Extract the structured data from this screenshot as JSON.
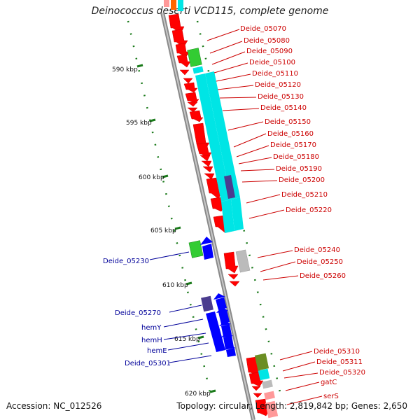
{
  "title": "Deinococcus deserti VCD115, complete genome",
  "footer": {
    "accession": "Accession: NC_012526",
    "summary": "Topology: circular; Length: 2,819,842 bp; Genes: 2,650"
  },
  "ticks": [
    "590 kbp",
    "595 kbp",
    "600 kbp",
    "605 kbp",
    "610 kbp",
    "615 kbp",
    "620 kbp"
  ],
  "labels_right": [
    "Deide_05070",
    "Deide_05080",
    "Deide_05090",
    "Deide_05100",
    "Deide_05110",
    "Deide_05120",
    "Deide_05130",
    "Deide_05140",
    "Deide_05150",
    "Deide_05160",
    "Deide_05170",
    "Deide_05180",
    "Deide_05190",
    "Deide_05200",
    "Deide_05210",
    "Deide_05220",
    "Deide_05240",
    "Deide_05250",
    "Deide_05260",
    "Deide_05310",
    "Deide_05311",
    "Deide_05320",
    "gatC",
    "serS"
  ],
  "labels_left": [
    "Deide_05230",
    "Deide_05270",
    "hemY",
    "hemH",
    "hemE",
    "Deide_05301"
  ],
  "colors": {
    "red": "#ff0000",
    "blue": "#0000ff",
    "cyan": "#00e5e5",
    "green": "#33cc33",
    "navy": "#4b3d8f",
    "gray": "#bbbbbb",
    "olive": "#6b8e23",
    "pink": "#ff9999",
    "backbone": "#888888",
    "dots": "#1a7a1a"
  }
}
